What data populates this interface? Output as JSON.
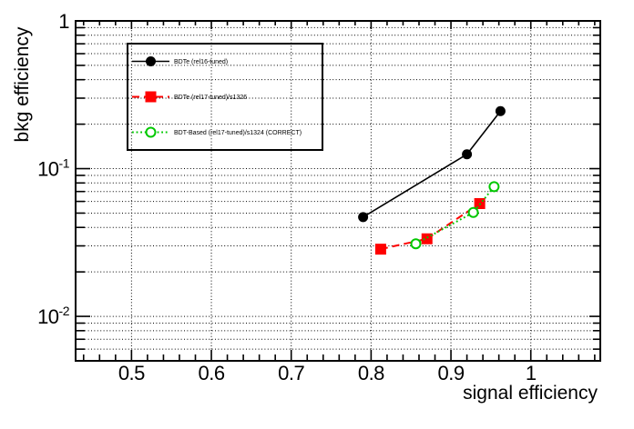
{
  "figure": {
    "background": "#ffffff",
    "frame_color": "#000000",
    "grid_color": "#000000"
  },
  "chart_data": {
    "type": "line",
    "title": "",
    "xlabel": "signal efficiency",
    "ylabel": "bkg efficiency",
    "xlim": [
      0.43,
      1.087
    ],
    "ylim": [
      0.005,
      1.0
    ],
    "yscale": "log",
    "grid": "on",
    "legend_position": "top-left",
    "x_ticks_major": [
      0.5,
      0.6,
      0.7,
      0.8,
      0.9,
      1.0
    ],
    "x_tick_labels": [
      "0.5",
      "0.6",
      "0.7",
      "0.8",
      "0.9",
      "1"
    ],
    "x_minor_step": 0.02,
    "y_ticks_major": [
      1,
      0.1,
      0.01
    ],
    "y_tick_labels": [
      {
        "mantissa": "1",
        "exponent": ""
      },
      {
        "mantissa": "10",
        "exponent": "-1"
      },
      {
        "mantissa": "10",
        "exponent": "-2"
      }
    ],
    "series": [
      {
        "name": "BDTe (rel16-tuned)",
        "color": "#000000",
        "line": "solid",
        "marker": "filled-circle",
        "points": [
          [
            0.79,
            0.047
          ],
          [
            0.92,
            0.125
          ],
          [
            0.962,
            0.245
          ]
        ]
      },
      {
        "name": "BDTe (rel17-tuned)/s1326",
        "color": "#ff0000",
        "line": "dashed",
        "marker": "filled-square",
        "points": [
          [
            0.812,
            0.0285
          ],
          [
            0.87,
            0.0335
          ],
          [
            0.936,
            0.058
          ]
        ]
      },
      {
        "name": "BDT-Based (rel17-tuned)/s1324 (CORRECT)",
        "color": "#00c800",
        "line": "dotted",
        "marker": "open-circle",
        "points": [
          [
            0.856,
            0.031
          ],
          [
            0.928,
            0.0505
          ],
          [
            0.954,
            0.0755
          ]
        ]
      }
    ]
  }
}
